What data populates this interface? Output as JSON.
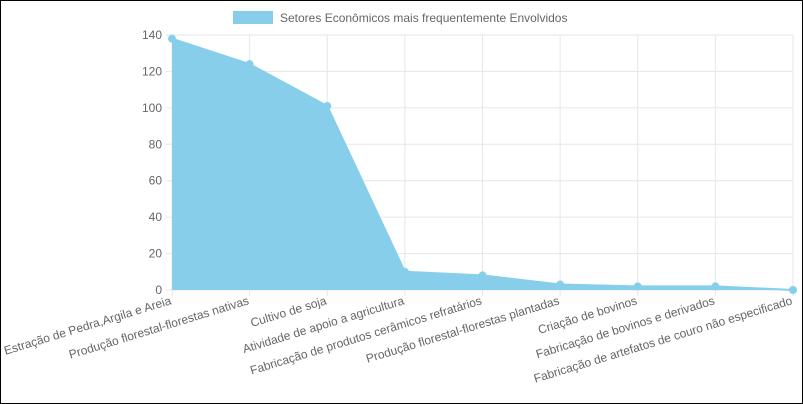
{
  "chart_data": {
    "type": "area",
    "title": "",
    "xlabel": "",
    "ylabel": "",
    "categories": [
      "Estração de Pedra,Argila e Areia",
      "Produção florestal-florestas nativas",
      "Cultivo de soja",
      "Atividade de apoio a agricultura",
      "Fabricação de produtos cerâmicos refratários",
      "Produção florestal-florestas plantadas",
      "Criação de bovinos",
      "Fabricação de bovinos e derivados",
      "Fabricação de artefatos de couro não especificado"
    ],
    "series": [
      {
        "name": "Setores Econômicos mais frequentemente Envolvidos",
        "values": [
          138,
          124,
          101,
          10,
          8,
          3,
          2,
          2,
          0
        ]
      }
    ],
    "ylim": [
      0,
      140
    ],
    "yticks": [
      "0",
      "20",
      "40",
      "60",
      "80",
      "100",
      "120",
      "140"
    ],
    "grid": true,
    "legend_position": "top-center",
    "colors": {
      "fill": "#87ceeb",
      "grid": "#e6e6e6",
      "tick_text": "#666666"
    }
  }
}
